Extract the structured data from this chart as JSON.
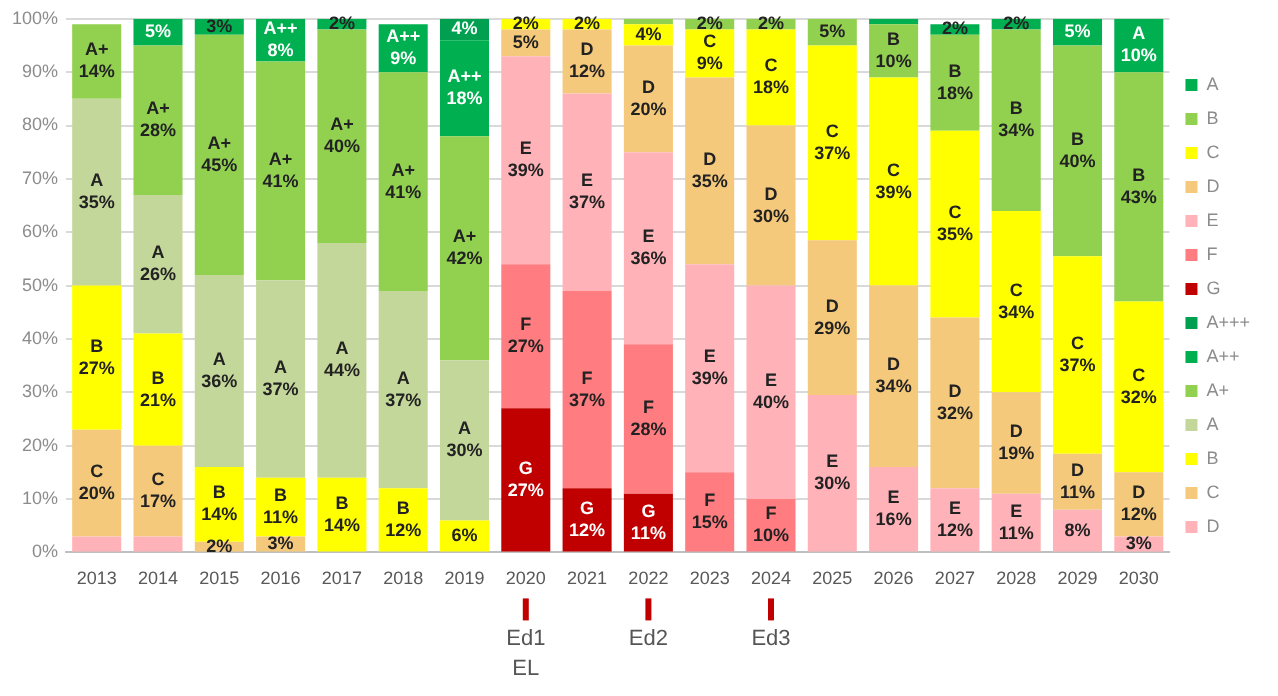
{
  "chart_data": {
    "type": "bar",
    "stacked": true,
    "categories": [
      "2013",
      "2014",
      "2015",
      "2016",
      "2017",
      "2018",
      "2019",
      "2020",
      "2021",
      "2022",
      "2023",
      "2024",
      "2025",
      "2026",
      "2027",
      "2028",
      "2029",
      "2030"
    ],
    "ylim": [
      0,
      100
    ],
    "yticks": [
      {
        "value": 0,
        "label": "0%"
      },
      {
        "value": 10,
        "label": "10%"
      },
      {
        "value": 20,
        "label": "20%"
      },
      {
        "value": 30,
        "label": "30%"
      },
      {
        "value": 40,
        "label": "40%"
      },
      {
        "value": 50,
        "label": "50%"
      },
      {
        "value": 60,
        "label": "60%"
      },
      {
        "value": 70,
        "label": "70%"
      },
      {
        "value": 80,
        "label": "80%"
      },
      {
        "value": 90,
        "label": "90%"
      },
      {
        "value": 100,
        "label": "100%"
      }
    ],
    "grid": "y",
    "legend": "right",
    "series": [
      {
        "name": "D",
        "color": "#ffb3b8",
        "values": [
          3,
          3,
          null,
          null,
          null,
          null,
          null,
          null,
          null,
          null,
          null,
          null,
          null,
          null,
          null,
          null,
          null,
          null
        ],
        "value_labels": [
          null,
          null,
          null,
          null,
          null,
          null,
          null,
          null,
          null,
          null,
          null,
          null,
          null,
          null,
          null,
          null,
          null,
          null
        ]
      },
      {
        "name": "C",
        "color": "#f5c97b",
        "values": [
          20,
          17,
          2,
          3,
          null,
          null,
          null,
          null,
          null,
          null,
          null,
          null,
          null,
          null,
          null,
          null,
          null,
          null
        ],
        "value_labels": [
          "C\n20%",
          "C\n17%",
          "2%",
          "3%",
          null,
          null,
          null,
          null,
          null,
          null,
          null,
          null,
          null,
          null,
          null,
          null,
          null,
          null
        ]
      },
      {
        "name": "B",
        "color": "#ffff00",
        "values": [
          27,
          21,
          14,
          11,
          14,
          12,
          6,
          null,
          null,
          null,
          null,
          null,
          null,
          null,
          null,
          null,
          null,
          null
        ],
        "value_labels": [
          "B\n27%",
          "B\n21%",
          "B\n14%",
          "B\n11%",
          "B\n14%",
          "B\n12%",
          "6%",
          null,
          null,
          null,
          null,
          null,
          null,
          null,
          null,
          null,
          null,
          null
        ]
      },
      {
        "name": "A",
        "color": "#c4d79b",
        "values": [
          35,
          26,
          36,
          37,
          44,
          37,
          30,
          null,
          null,
          null,
          null,
          null,
          null,
          null,
          null,
          null,
          null,
          null
        ],
        "value_labels": [
          "A\n35%",
          "A\n26%",
          "A\n36%",
          "A\n37%",
          "A\n44%",
          "A\n37%",
          "A\n30%",
          null,
          null,
          null,
          null,
          null,
          null,
          null,
          null,
          null,
          null,
          null
        ]
      },
      {
        "name": "A+",
        "color": "#92d050",
        "values": [
          14,
          28,
          45,
          41,
          40,
          41,
          42,
          null,
          null,
          null,
          null,
          null,
          null,
          null,
          null,
          null,
          null,
          null
        ],
        "value_labels": [
          "A+\n14%",
          "A+\n28%",
          "A+\n45%",
          "A+\n41%",
          "A+\n40%",
          "A+\n41%",
          "A+\n42%",
          null,
          null,
          null,
          null,
          null,
          null,
          null,
          null,
          null,
          null,
          null
        ]
      },
      {
        "name": "A++",
        "color": "#00b050",
        "values": [
          null,
          5,
          3,
          8,
          2,
          9,
          18,
          null,
          null,
          null,
          null,
          null,
          null,
          null,
          null,
          null,
          null,
          null
        ],
        "value_labels": [
          null,
          "5%",
          "3%",
          "A++\n8%",
          "2%",
          "A++\n9%",
          "A++\n18%",
          null,
          null,
          null,
          null,
          null,
          null,
          null,
          null,
          null,
          null,
          null
        ]
      },
      {
        "name": "A+++",
        "color": "#00a050",
        "values": [
          null,
          null,
          null,
          null,
          null,
          null,
          4,
          null,
          null,
          null,
          null,
          null,
          null,
          null,
          null,
          null,
          null,
          null
        ],
        "value_labels": [
          null,
          null,
          null,
          null,
          null,
          null,
          "4%",
          null,
          null,
          null,
          null,
          null,
          null,
          null,
          null,
          null,
          null,
          null
        ]
      },
      {
        "name": "G",
        "color": "#c00000",
        "values": [
          null,
          null,
          null,
          null,
          null,
          null,
          null,
          27,
          12,
          11,
          null,
          null,
          null,
          null,
          null,
          null,
          null,
          null
        ],
        "value_labels": [
          null,
          null,
          null,
          null,
          null,
          null,
          null,
          "G\n27%",
          "G\n12%",
          "G\n11%",
          null,
          null,
          null,
          null,
          null,
          null,
          null,
          null
        ]
      },
      {
        "name": "F",
        "color": "#ff7c80",
        "values": [
          null,
          null,
          null,
          null,
          null,
          null,
          null,
          27,
          37,
          28,
          15,
          10,
          null,
          null,
          null,
          null,
          null,
          null
        ],
        "value_labels": [
          null,
          null,
          null,
          null,
          null,
          null,
          null,
          "F\n27%",
          "F\n37%",
          "F\n28%",
          "F\n15%",
          "F\n10%",
          null,
          null,
          null,
          null,
          null,
          null
        ]
      },
      {
        "name": "E",
        "color": "#ffb3b8",
        "values": [
          null,
          null,
          null,
          null,
          null,
          null,
          null,
          39,
          37,
          36,
          39,
          40,
          29.5,
          16,
          12,
          11,
          8,
          3
        ],
        "value_labels": [
          null,
          null,
          null,
          null,
          null,
          null,
          null,
          "E\n39%",
          "E\n37%",
          "E\n36%",
          "E\n39%",
          "E\n40%",
          "E\n30%",
          "E\n16%",
          "E\n12%",
          "E\n11%",
          "8%",
          "3%"
        ]
      },
      {
        "name": "D",
        "color": "#f5c97b",
        "values": [
          null,
          null,
          null,
          null,
          null,
          null,
          null,
          5,
          12,
          20,
          35,
          30,
          29,
          34,
          32,
          19,
          10.5,
          12
        ],
        "value_labels": [
          null,
          null,
          null,
          null,
          null,
          null,
          null,
          "5%",
          "D\n12%",
          "D\n20%",
          "D\n35%",
          "D\n30%",
          "D\n29%",
          "D\n34%",
          "D\n32%",
          "D\n19%",
          "D\n11%",
          "D\n12%"
        ]
      },
      {
        "name": "C",
        "color": "#ffff00",
        "values": [
          null,
          null,
          null,
          null,
          null,
          null,
          null,
          2,
          2,
          4,
          9,
          18,
          36.5,
          39,
          35,
          34,
          37,
          32
        ],
        "value_labels": [
          null,
          null,
          null,
          null,
          null,
          null,
          null,
          "2%",
          "2%",
          "4%",
          "C\n9%",
          "C\n18%",
          "C\n37%",
          "C\n39%",
          "C\n35%",
          "C\n34%",
          "C\n37%",
          "C\n32%"
        ]
      },
      {
        "name": "B",
        "color": "#92d050",
        "values": [
          null,
          null,
          null,
          null,
          null,
          null,
          null,
          null,
          null,
          1,
          2,
          2,
          5,
          10,
          18,
          34,
          39.5,
          43
        ],
        "value_labels": [
          null,
          null,
          null,
          null,
          null,
          null,
          null,
          null,
          null,
          null,
          "2%",
          "2%",
          "5%",
          "B\n10%",
          "B\n18%",
          "B\n34%",
          "B\n40%",
          "B\n43%"
        ]
      },
      {
        "name": "A",
        "color": "#00b050",
        "values": [
          null,
          null,
          null,
          null,
          null,
          null,
          null,
          null,
          null,
          null,
          null,
          null,
          null,
          1,
          2,
          2,
          5,
          10
        ],
        "value_labels": [
          null,
          null,
          null,
          null,
          null,
          null,
          null,
          null,
          null,
          null,
          null,
          null,
          null,
          null,
          "2%",
          "2%",
          "5%",
          "A\n10%"
        ]
      }
    ],
    "annotations": [
      "Ed1",
      "EL",
      "Ed2",
      "Ed3"
    ]
  }
}
